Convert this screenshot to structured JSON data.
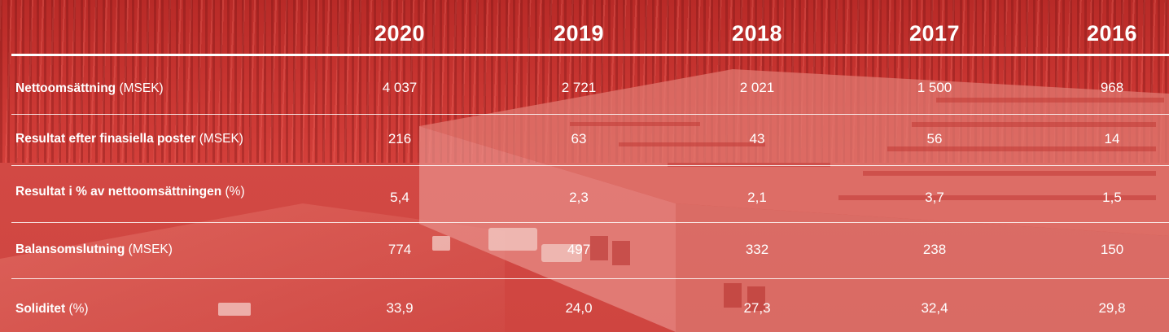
{
  "table": {
    "years": [
      "2020",
      "2019",
      "2018",
      "2017",
      "2016"
    ],
    "rows": [
      {
        "label": "Nettoomsättning",
        "unit": "(MSEK)",
        "values": [
          "4 037",
          "2 721",
          "2 021",
          "1 500",
          "968"
        ]
      },
      {
        "label": "Resultat efter finasiella poster",
        "unit": "(MSEK)",
        "values": [
          "216",
          "63",
          "43",
          "56",
          "14"
        ]
      },
      {
        "label": "Resultat i % av nettoomsättningen",
        "unit": "(%)",
        "values": [
          "5,4",
          "2,3",
          "2,1",
          "3,7",
          "1,5"
        ]
      },
      {
        "label": "Balansomslutning",
        "unit": "(MSEK)",
        "values": [
          "774",
          "497",
          "332",
          "238",
          "150"
        ]
      },
      {
        "label": "Soliditet",
        "unit": "(%)",
        "values": [
          "33,9",
          "24,0",
          "27,3",
          "32,4",
          "29,8"
        ]
      }
    ]
  },
  "colors": {
    "overlay": "#d8433f",
    "text": "#ffffff"
  }
}
